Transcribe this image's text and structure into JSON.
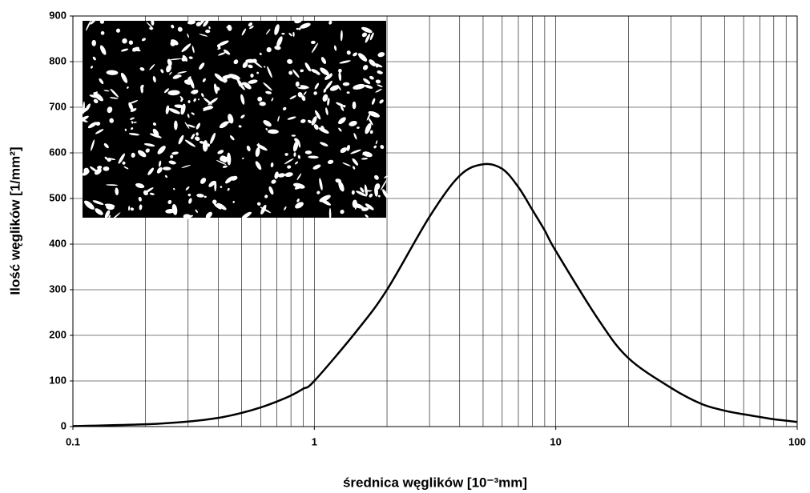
{
  "chart_data": {
    "type": "line",
    "x_label": "średnica węglików  [10⁻³mm]",
    "y_label": "Ilość węglików [1/mm²]",
    "x": [
      0.1,
      0.2,
      0.3,
      0.4,
      0.5,
      0.6,
      0.7,
      0.8,
      0.9,
      1,
      1.5,
      2,
      3,
      4,
      5,
      6,
      7,
      8,
      9,
      10,
      15,
      20,
      30,
      40,
      50,
      60,
      70,
      80,
      90,
      100
    ],
    "values": [
      1,
      5,
      11,
      19,
      30,
      42,
      55,
      68,
      83,
      100,
      210,
      300,
      460,
      550,
      575,
      565,
      525,
      475,
      430,
      385,
      235,
      150,
      85,
      50,
      35,
      27,
      21,
      16,
      13,
      10
    ],
    "color": "#000000",
    "log_x": true,
    "grid": true,
    "xlim": [
      0.1,
      100
    ],
    "xticks": [
      0.1,
      1,
      10,
      100
    ],
    "ylim": [
      0,
      900
    ],
    "yticks": [
      0,
      100,
      200,
      300,
      400,
      500,
      600,
      700,
      800,
      900
    ]
  }
}
